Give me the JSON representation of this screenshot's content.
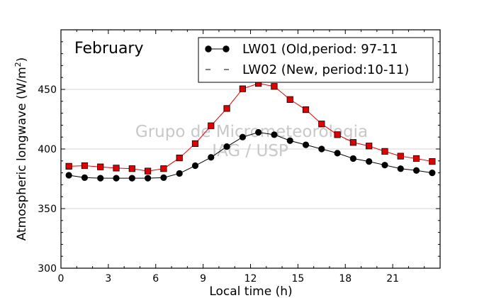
{
  "chart_data": {
    "type": "line",
    "title": "February",
    "xlabel": "Local time (h)",
    "ylabel": "Atmospheric longwave (W/m",
    "ylabel_sup": "2",
    "ylabel_end": ")",
    "xlim": [
      0,
      24
    ],
    "ylim": [
      300,
      500
    ],
    "xticks": [
      0,
      3,
      6,
      9,
      12,
      15,
      18,
      21
    ],
    "yticks": [
      300,
      350,
      400,
      450
    ],
    "grid": "horizontal",
    "legend_position": "top-right",
    "watermark": [
      "Grupo de Micrometeorologia",
      "IAG / USP"
    ],
    "x": [
      0.5,
      1.5,
      2.5,
      3.5,
      4.5,
      5.5,
      6.5,
      7.5,
      8.5,
      9.5,
      10.5,
      11.5,
      12.5,
      13.5,
      14.5,
      15.5,
      16.5,
      17.5,
      18.5,
      19.5,
      20.5,
      21.5,
      22.5,
      23.5
    ],
    "series": [
      {
        "name": "LW01 (Old,period: 97-11",
        "color": "#000000",
        "marker": "circle",
        "values": [
          378,
          376,
          375.5,
          375.5,
          375.5,
          375.5,
          376,
          379.5,
          386,
          393,
          402,
          410,
          414,
          412,
          407,
          403.5,
          400,
          396.5,
          392,
          389.5,
          386.5,
          383.5,
          382,
          380
        ]
      },
      {
        "name": "LW02 (New, period:10-11)",
        "color": "#e00000",
        "marker": "square",
        "values": [
          385.5,
          386,
          385,
          384,
          383.5,
          381.5,
          383.5,
          392.5,
          404.5,
          419.5,
          434,
          450.5,
          455,
          452.5,
          441.5,
          433,
          421,
          412,
          405.5,
          402.5,
          398,
          394,
          392,
          389.5
        ]
      }
    ]
  }
}
